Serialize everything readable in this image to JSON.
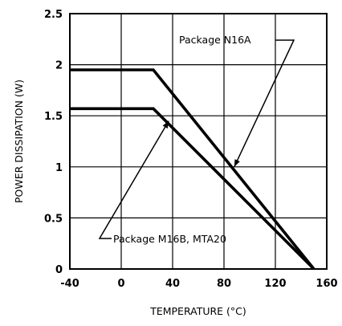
{
  "chart_data": {
    "type": "line",
    "title": "",
    "xlabel": "TEMPERATURE (°C)",
    "ylabel": "POWER DISSIPATION (W)",
    "xlim": [
      -40,
      160
    ],
    "ylim": [
      0,
      2.5
    ],
    "x_ticks": [
      "-40",
      "0",
      "40",
      "80",
      "120",
      "160"
    ],
    "y_ticks": [
      "0",
      "0.5",
      "1",
      "1.5",
      "2",
      "2.5"
    ],
    "grid": true,
    "series": [
      {
        "name": "Package N16A",
        "x": [
          -40,
          25,
          150
        ],
        "y": [
          1.95,
          1.95,
          0
        ]
      },
      {
        "name": "Package M16B, MTA20",
        "x": [
          -40,
          25,
          150
        ],
        "y": [
          1.57,
          1.57,
          0
        ]
      }
    ],
    "annotations": [
      {
        "text": "Package N16A",
        "points_to": {
          "x": 88,
          "y": 1.0
        }
      },
      {
        "text": "Package M16B, MTA20",
        "points_to": {
          "x": 37,
          "y": 1.45
        }
      }
    ]
  }
}
